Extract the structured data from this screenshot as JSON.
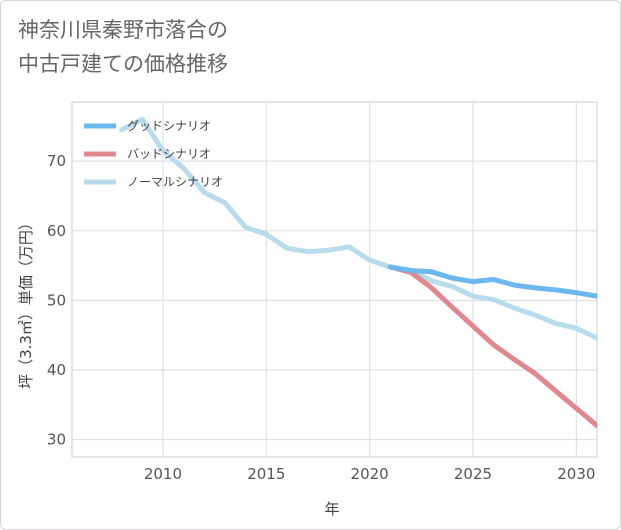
{
  "title": {
    "line1": "神奈川県秦野市落合の",
    "line2": "中古戸建ての価格推移"
  },
  "chart_data": {
    "type": "line",
    "xlabel": "年",
    "ylabel": "坪（3.3㎡）単価（万円）",
    "xlim": [
      2005.6,
      2031
    ],
    "ylim": [
      27.5,
      78.5
    ],
    "x_ticks": [
      2010,
      2015,
      2020,
      2025,
      2030
    ],
    "y_ticks": [
      30,
      40,
      50,
      60,
      70
    ],
    "grid": true,
    "legend_position": "top-left",
    "series": [
      {
        "name": "グッドシナリオ",
        "color": "#6cb8ee",
        "x": [
          2021,
          2022,
          2023,
          2024,
          2025,
          2026,
          2027,
          2028,
          2029,
          2030,
          2031
        ],
        "y": [
          54.8,
          54.3,
          54.1,
          53.2,
          52.7,
          53.0,
          52.2,
          51.8,
          51.5,
          51.1,
          50.6
        ]
      },
      {
        "name": "バッドシナリオ",
        "color": "#e08890",
        "x": [
          2021,
          2022,
          2023,
          2024,
          2025,
          2026,
          2027,
          2028,
          2029,
          2030,
          2031
        ],
        "y": [
          54.8,
          54.0,
          51.8,
          49.0,
          46.3,
          43.6,
          41.5,
          39.5,
          37.0,
          34.5,
          32.0
        ]
      },
      {
        "name": "ノーマルシナリオ",
        "color": "#b8dcec",
        "x": [
          2008,
          2009,
          2010,
          2011,
          2012,
          2013,
          2014,
          2015,
          2016,
          2017,
          2018,
          2019,
          2020,
          2021,
          2022,
          2023,
          2024,
          2025,
          2026,
          2027,
          2028,
          2029,
          2030,
          2031
        ],
        "y": [
          74.5,
          76.0,
          71.5,
          69.0,
          65.5,
          64.0,
          60.5,
          59.5,
          57.5,
          57.0,
          57.2,
          57.7,
          55.8,
          54.8,
          54.3,
          52.8,
          52.0,
          50.6,
          50.1,
          48.9,
          47.9,
          46.7,
          46.0,
          44.6
        ]
      }
    ]
  }
}
